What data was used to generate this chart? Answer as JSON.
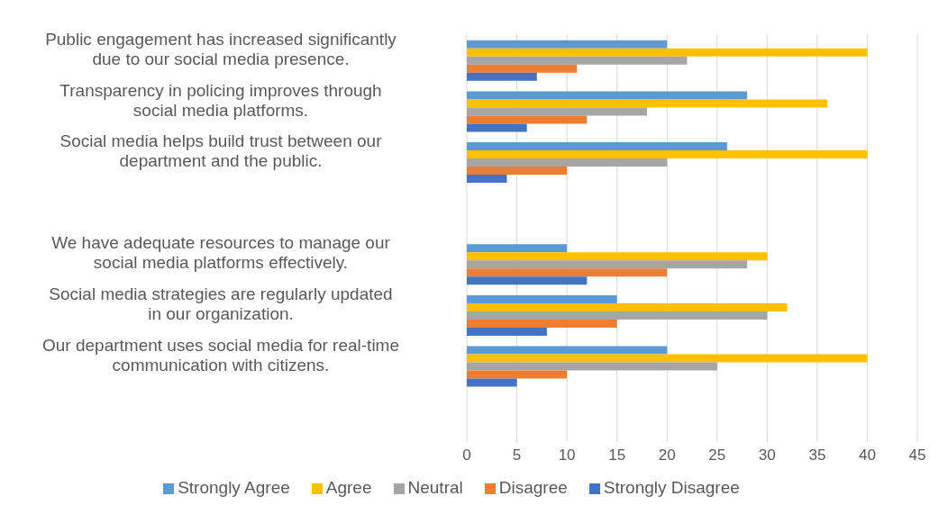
{
  "chart_data": {
    "type": "bar",
    "orientation": "horizontal",
    "categories": [
      "Public engagement has increased significantly due to our social media presence.",
      "Transparency in policing improves through social media platforms.",
      "Social media helps build trust between our department and the public.",
      null,
      "We have adequate resources to manage our social media platforms effectively.",
      "Social media strategies are regularly updated in our organization.",
      "Our department uses social media for real-time communication with citizens.",
      null
    ],
    "series": [
      {
        "name": "Strongly Agree",
        "color": "#5b9bd5",
        "values": [
          20,
          28,
          26,
          null,
          10,
          15,
          20,
          null
        ]
      },
      {
        "name": "Agree",
        "color": "#ffc000",
        "values": [
          40,
          36,
          40,
          null,
          30,
          32,
          40,
          null
        ]
      },
      {
        "name": "Neutral",
        "color": "#a5a5a5",
        "values": [
          22,
          18,
          20,
          null,
          28,
          30,
          25,
          null
        ]
      },
      {
        "name": "Disagree",
        "color": "#ed7d31",
        "values": [
          11,
          12,
          10,
          null,
          20,
          15,
          10,
          null
        ]
      },
      {
        "name": "Strongly Disagree",
        "color": "#4472c4",
        "values": [
          7,
          6,
          4,
          null,
          12,
          8,
          5,
          null
        ]
      }
    ],
    "xlim": [
      0,
      45
    ],
    "xticks": [
      0,
      5,
      10,
      15,
      20,
      25,
      30,
      35,
      40,
      45
    ],
    "grid": "x",
    "legend": "bottom"
  }
}
